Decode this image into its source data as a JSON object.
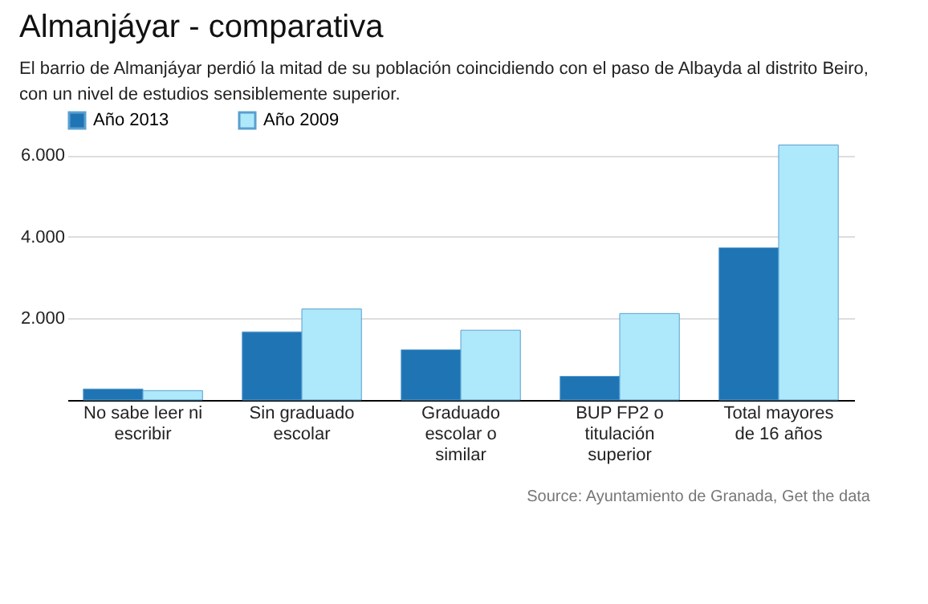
{
  "chart_data": {
    "type": "bar",
    "title": "Almanjáyar - comparativa",
    "subtitle": "El barrio de Almanjáyar perdió la mitad de su población coincidiendo con el paso de Albayda al distrito Beiro, con un nivel de estudios sensiblemente superior.",
    "categories": [
      "No sabe leer ni escribir",
      "Sin graduado escolar",
      "Graduado escolar o similar",
      "BUP FP2 o titulación superior",
      "Total mayores de 16 años"
    ],
    "series": [
      {
        "name": "Año 2013",
        "color": "#1f74b4",
        "values": [
          270,
          1670,
          1230,
          580,
          3730
        ]
      },
      {
        "name": "Año 2009",
        "color": "#aee8fb",
        "values": [
          230,
          2230,
          1710,
          2120,
          6250
        ]
      }
    ],
    "ylim": [
      0,
      6300
    ],
    "yticks": [
      {
        "value": 2000,
        "label": "2.000"
      },
      {
        "value": 4000,
        "label": "4.000"
      },
      {
        "value": 6000,
        "label": "6.000"
      }
    ],
    "grid": "y",
    "legend": "top left",
    "annotations": [
      "Source: Ayuntamiento de Granada, Get the data"
    ]
  }
}
